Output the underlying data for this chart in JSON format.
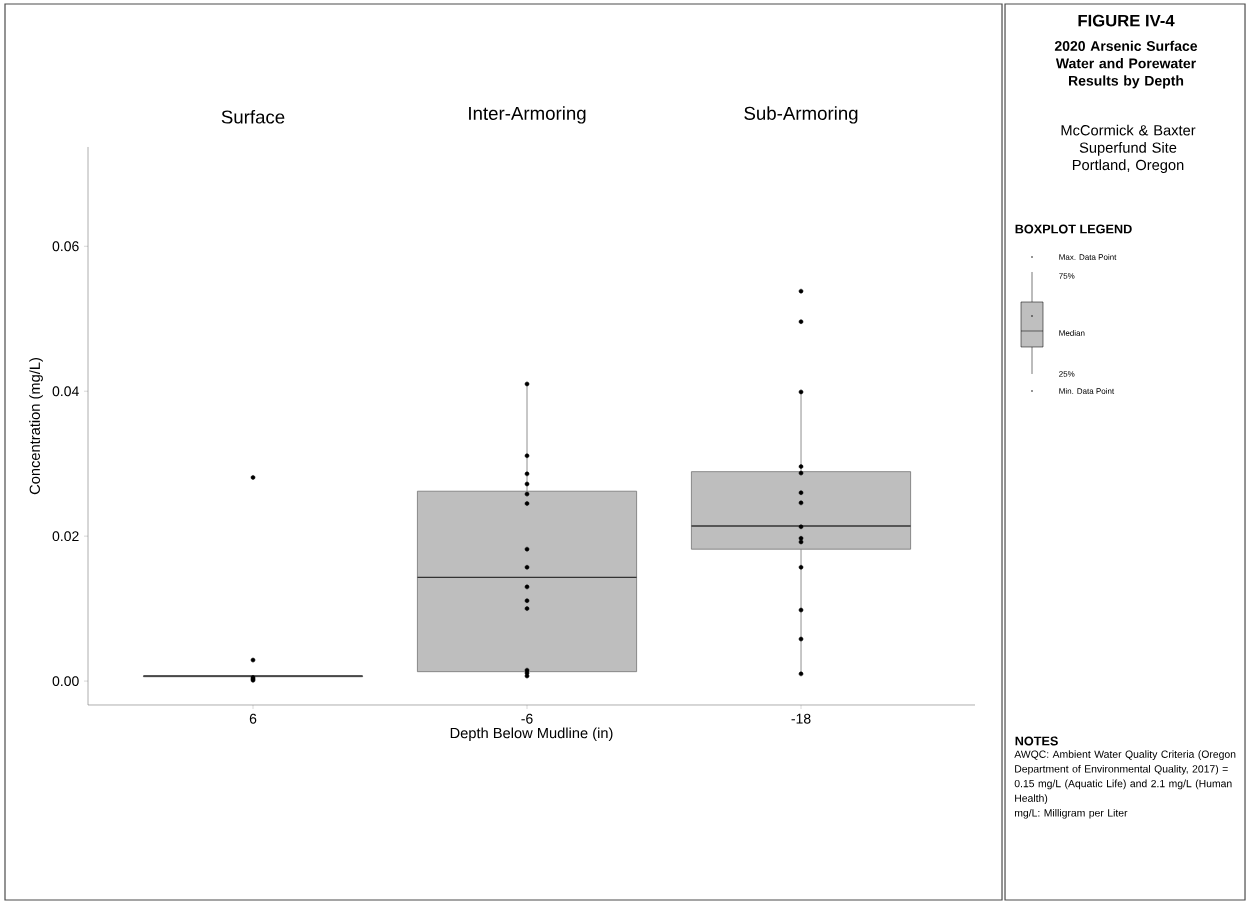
{
  "chart_data": {
    "type": "box",
    "title": "FIGURE IV-4",
    "subtitle": "2020 Arsenic Surface Water and Porewater Results by Depth",
    "xlabel": "Depth Below Mudline (in)",
    "ylabel": "Concentration (mg/L)",
    "categories": [
      "6",
      "-6",
      "-18"
    ],
    "ylim": [
      -0.0033,
      0.0737
    ],
    "yticks": [
      {
        "value": 0,
        "label": "0.00"
      },
      {
        "value": 0.02,
        "label": "0.02"
      },
      {
        "value": 0.04,
        "label": "0.04"
      },
      {
        "value": 0.06,
        "label": "0.06"
      }
    ],
    "marker": "circle",
    "series": [
      {
        "color": "#bebebe",
        "boxes": [
          {
            "low": 0.0001,
            "q1": 0.0006,
            "median": 0.0007,
            "q3": 0.0007,
            "high": 0.0008
          },
          {
            "low": 0.0007,
            "q1": 0.0013,
            "median": 0.0143,
            "q3": 0.0262,
            "high": 0.041
          },
          {
            "low": 0.001,
            "q1": 0.0182,
            "median": 0.0214,
            "q3": 0.0289,
            "high": 0.0399
          }
        ]
      },
      {
        "type": "scatter",
        "color": "#000000",
        "x": [
          "6",
          "6",
          "6",
          "6",
          "6",
          "-6",
          "-6",
          "-6",
          "-6",
          "-6",
          "-6",
          "-6",
          "-6",
          "-6",
          "-6",
          "-6",
          "-6",
          "-6",
          "-6",
          "-18",
          "-18",
          "-18",
          "-18",
          "-18",
          "-18",
          "-18",
          "-18",
          "-18",
          "-18",
          "-18",
          "-18",
          "-18",
          "-18"
        ],
        "values": [
          0.0281,
          0.0029,
          0.0005,
          0.0003,
          0.0001,
          0.041,
          0.0311,
          0.0286,
          0.0272,
          0.0258,
          0.0245,
          0.0182,
          0.0157,
          0.013,
          0.0111,
          0.01,
          0.0015,
          0.0011,
          0.0007,
          0.0538,
          0.0496,
          0.0399,
          0.0296,
          0.0287,
          0.026,
          0.0246,
          0.0213,
          0.0197,
          0.0192,
          0.0157,
          0.0098,
          0.0058,
          0.001
        ]
      }
    ],
    "annotations": [
      "McCormick & Baxter Superfund Site Portland, Oregon",
      "BOXPLOT LEGEND",
      "Max. Data Point",
      "75%",
      "Median",
      "25%",
      "Min. Data Point",
      "NOTES",
      "AWQC: Ambient Water Quality Criteria (Oregon Department of Environmental Quality, 2017) = 0.15 mg/L (Aquatic Life) and 2.1 mg/L (Human Health)",
      "mg/L: Milligram per Liter",
      "Surface",
      "Inter-Armoring",
      "Sub-Armoring"
    ]
  }
}
